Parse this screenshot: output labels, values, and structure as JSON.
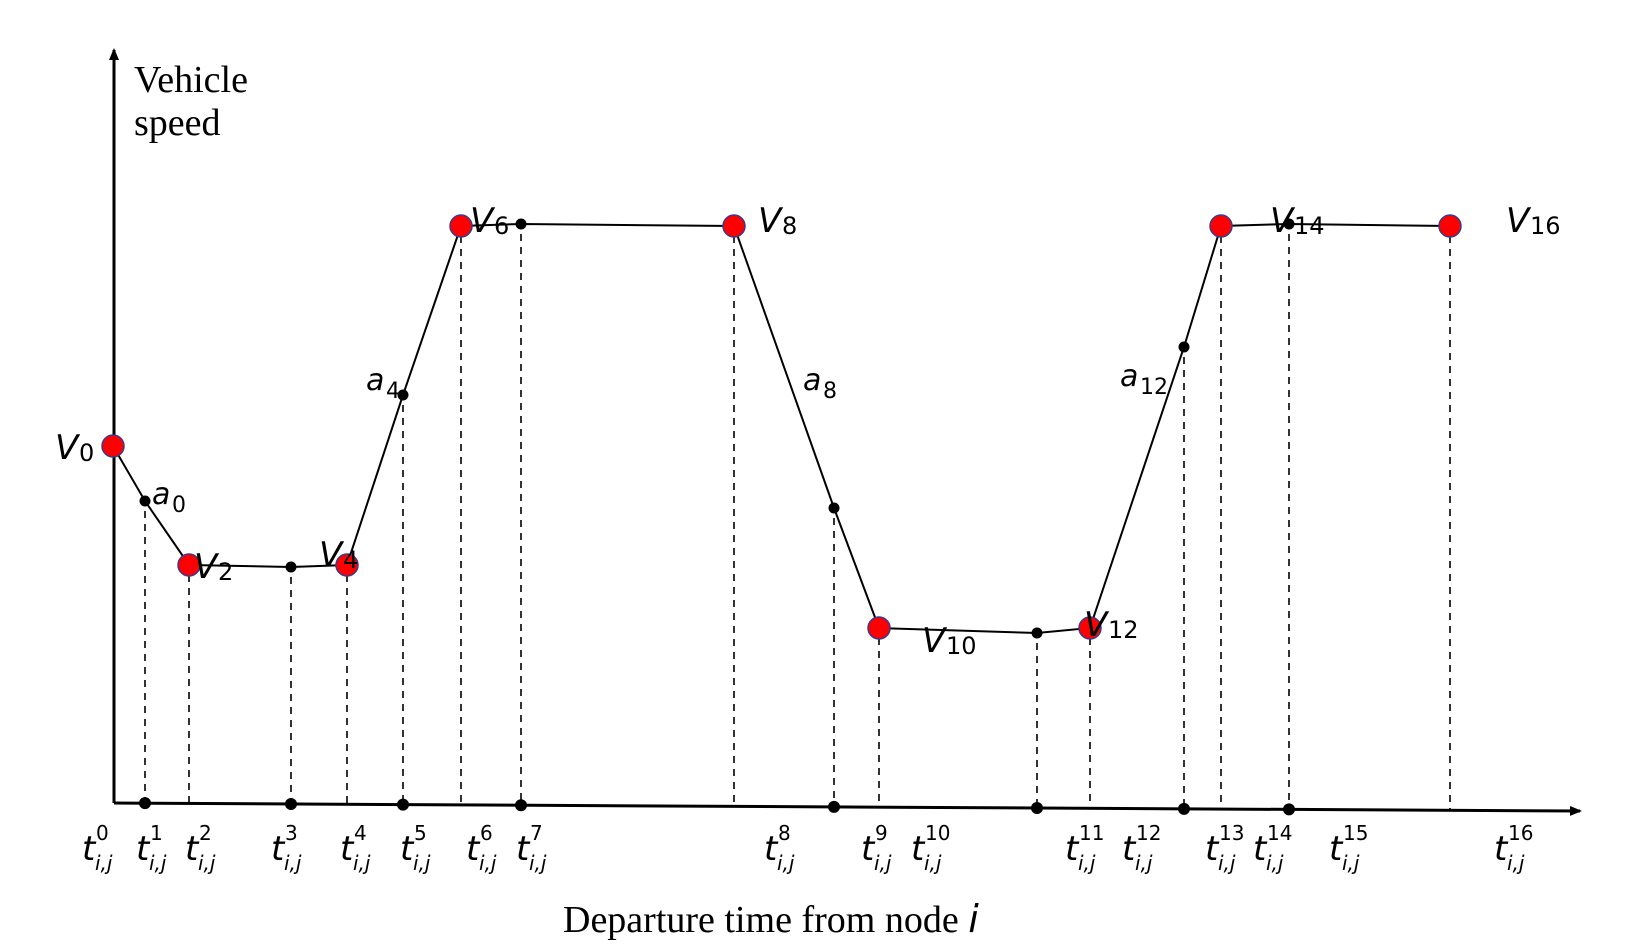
{
  "axes": {
    "y_label_line1": "Vehicle",
    "y_label_line2": "speed",
    "x_label": "Departure time from node ",
    "x_label_var": "i"
  },
  "colors": {
    "line": "#000000",
    "node_fill": "#ff0000",
    "node_stroke": "#3a3a8c"
  },
  "time_ticks": [
    {
      "sup": "0",
      "sub": "i,j"
    },
    {
      "sup": "1",
      "sub": "i,j"
    },
    {
      "sup": "2",
      "sub": "i,j"
    },
    {
      "sup": "3",
      "sub": "i,j"
    },
    {
      "sup": "4",
      "sub": "i,j"
    },
    {
      "sup": "5",
      "sub": "i,j"
    },
    {
      "sup": "6",
      "sub": "i,j"
    },
    {
      "sup": "7",
      "sub": "i,j"
    },
    {
      "sup": "8",
      "sub": "i,j"
    },
    {
      "sup": "9",
      "sub": "i,j"
    },
    {
      "sup": "10",
      "sub": "i,j"
    },
    {
      "sup": "11",
      "sub": "i,j"
    },
    {
      "sup": "12",
      "sub": "i,j"
    },
    {
      "sup": "13",
      "sub": "i,j"
    },
    {
      "sup": "14",
      "sub": "i,j"
    },
    {
      "sup": "15",
      "sub": "i,j"
    },
    {
      "sup": "16",
      "sub": "i,j"
    }
  ],
  "speed_labels": [
    {
      "base": "V",
      "sub": "0"
    },
    {
      "base": "V",
      "sub": "2"
    },
    {
      "base": "V",
      "sub": "4"
    },
    {
      "base": "V",
      "sub": "6"
    },
    {
      "base": "V",
      "sub": "8"
    },
    {
      "base": "V",
      "sub": "10"
    },
    {
      "base": "V",
      "sub": "12"
    },
    {
      "base": "V",
      "sub": "14"
    },
    {
      "base": "V",
      "sub": "16"
    }
  ],
  "accel_labels": [
    {
      "base": "a",
      "sub": "0"
    },
    {
      "base": "a",
      "sub": "4"
    },
    {
      "base": "a",
      "sub": "8"
    },
    {
      "base": "a",
      "sub": "12"
    }
  ]
}
